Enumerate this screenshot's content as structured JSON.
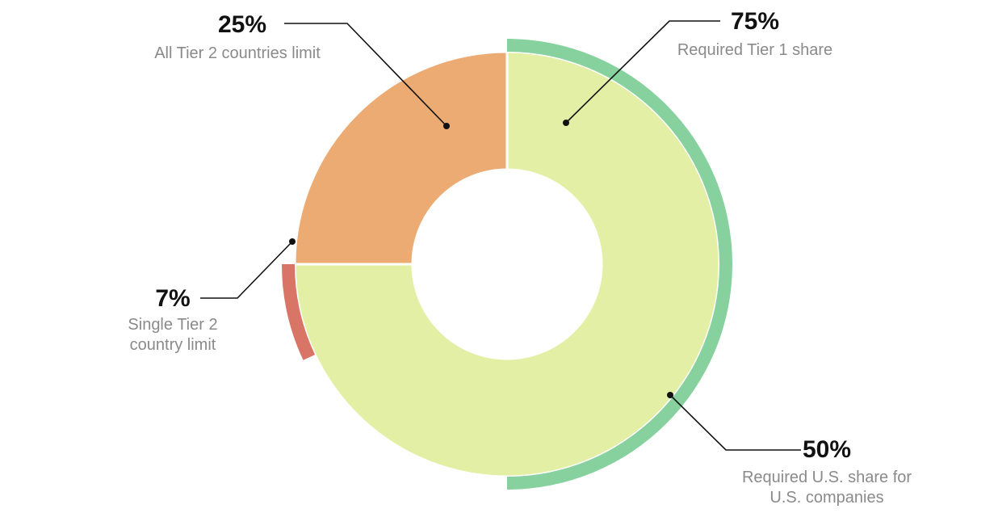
{
  "chart_data": {
    "type": "pie",
    "style": "nested donut",
    "rings": [
      {
        "name": "inner",
        "slices": [
          {
            "value": 75,
            "color": "#e3efa5"
          },
          {
            "value": 25,
            "color": "#ecab72"
          }
        ]
      },
      {
        "name": "outer",
        "slices": [
          {
            "value": 50,
            "color": "#86d19e"
          },
          {
            "value": 7,
            "color": "#d87566"
          }
        ]
      }
    ],
    "annotations": [
      {
        "value": "25%",
        "label": "All Tier 2 countries limit"
      },
      {
        "value": "75%",
        "label": "Required Tier 1 share"
      },
      {
        "value": "7%",
        "label": "Single Tier 2 country limit"
      },
      {
        "value": "50%",
        "label": "Required U.S. share for U.S. companies"
      }
    ]
  }
}
